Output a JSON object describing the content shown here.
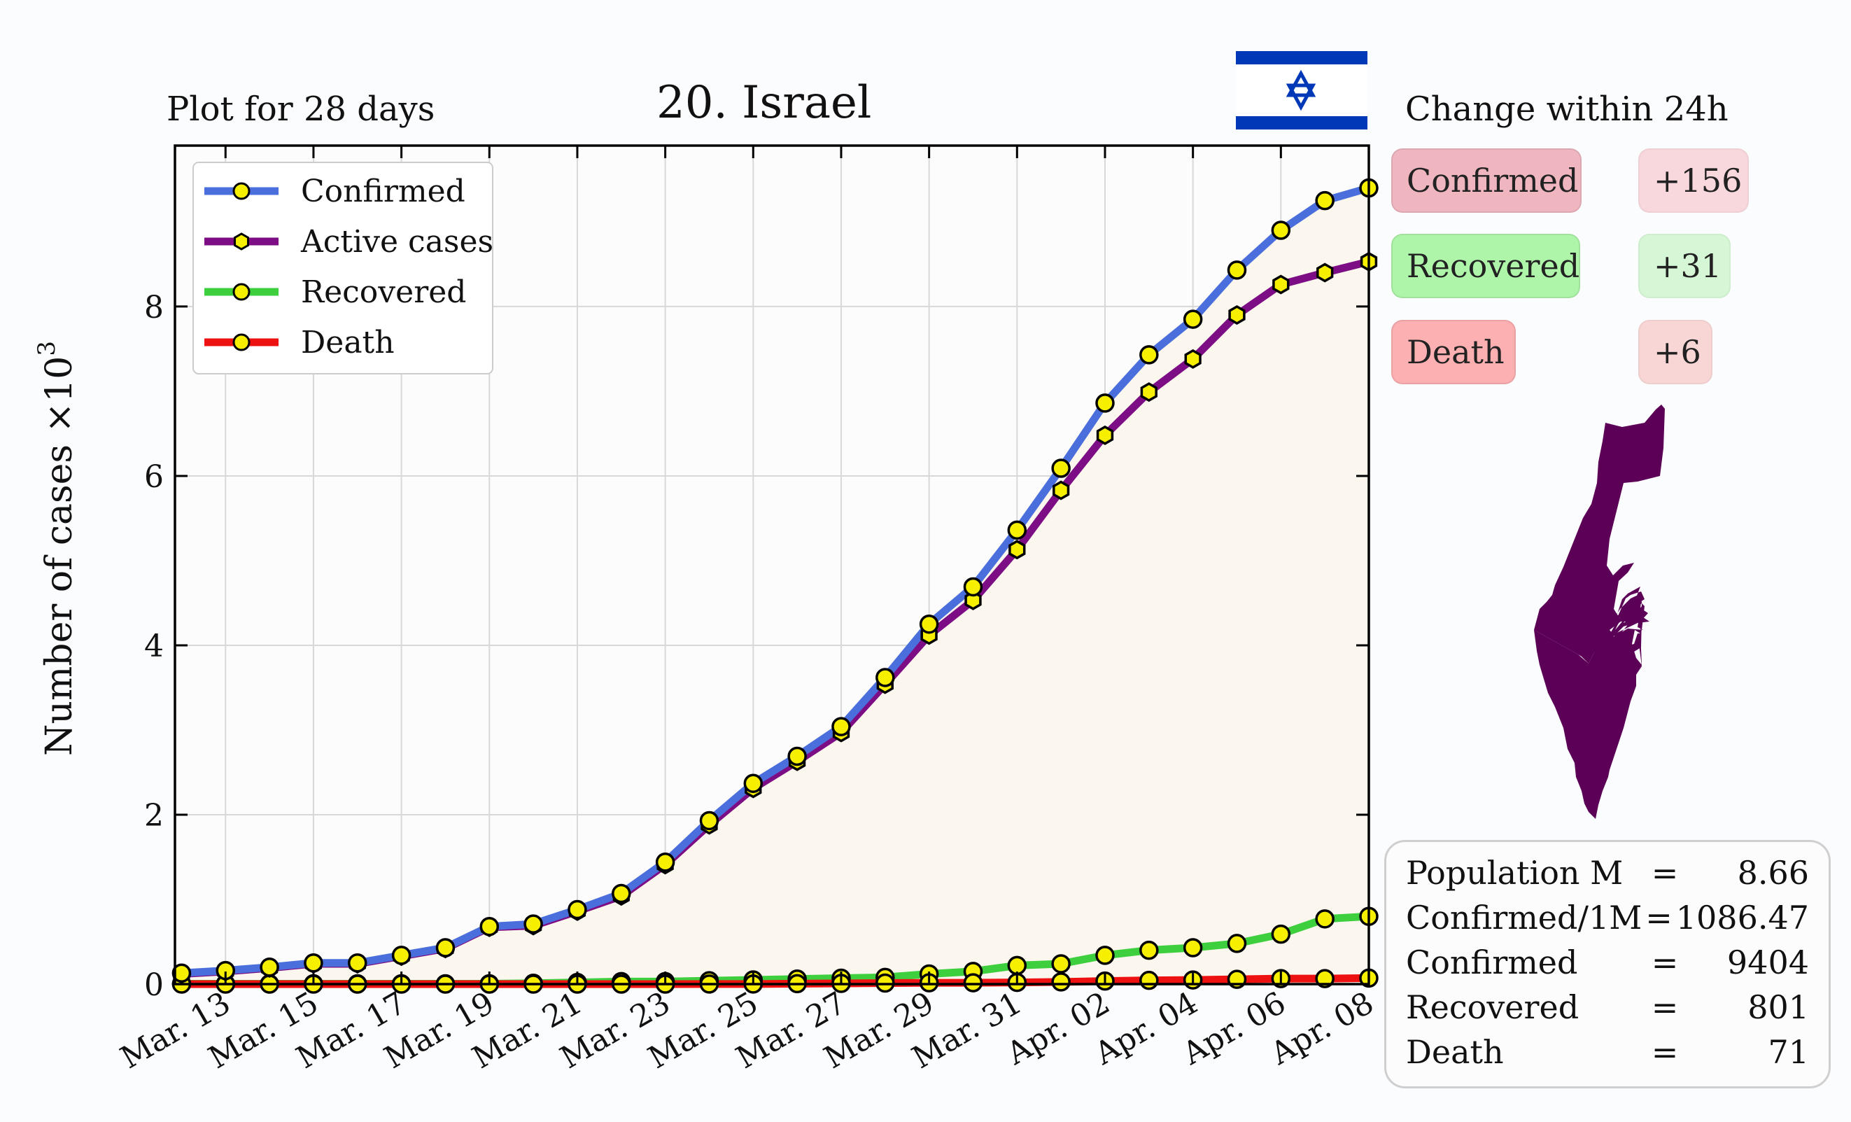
{
  "header": {
    "plot_period": "Plot for 28 days",
    "title": "20. Israel",
    "change_title": "Change within 24h"
  },
  "change": [
    {
      "label": "Confirmed",
      "value": "+156",
      "label_color": "#f0b6c0",
      "value_color": "#f8d8dd"
    },
    {
      "label": "Recovered",
      "value": "+31",
      "label_color": "#aef5aa",
      "value_color": "#d6f7d6"
    },
    {
      "label": "Death",
      "value": "+6",
      "label_color": "#fcb0b2",
      "value_color": "#f8d6d6"
    }
  ],
  "stats": [
    {
      "label": "Population M",
      "eq": "=",
      "value": "8.66"
    },
    {
      "label": "Confirmed/1M",
      "eq": "=",
      "value": "1086.47"
    },
    {
      "label": "Confirmed",
      "eq": "=",
      "value": "9404"
    },
    {
      "label": "Recovered",
      "eq": "=",
      "value": "801"
    },
    {
      "label": "Death",
      "eq": "=",
      "value": "71"
    }
  ],
  "icons": {
    "flag": "israel-flag-icon",
    "map": "israel-map-icon"
  },
  "colors": {
    "flag_blue": "#0038b8",
    "map_fill": "#5c0057",
    "fill_area": "#fbf7ee"
  },
  "chart_data": {
    "type": "line",
    "ylabel": "Number of cases ×10³",
    "ylabel_main": "Number of cases ×10",
    "ylabel_exp": "3",
    "ylim": [
      0,
      9.9
    ],
    "yticks": [
      0,
      2,
      4,
      6,
      8
    ],
    "grid": true,
    "legend_position": "top-left",
    "x": [
      "Mar. 12",
      "Mar. 13",
      "Mar. 14",
      "Mar. 15",
      "Mar. 16",
      "Mar. 17",
      "Mar. 18",
      "Mar. 19",
      "Mar. 20",
      "Mar. 21",
      "Mar. 22",
      "Mar. 23",
      "Mar. 24",
      "Mar. 25",
      "Mar. 26",
      "Mar. 27",
      "Mar. 28",
      "Mar. 29",
      "Mar. 30",
      "Mar. 31",
      "Apr. 01",
      "Apr. 02",
      "Apr. 03",
      "Apr. 04",
      "Apr. 05",
      "Apr. 06",
      "Apr. 07",
      "Apr. 08"
    ],
    "xtick_labels": [
      "Mar. 13",
      "Mar. 15",
      "Mar. 17",
      "Mar. 19",
      "Mar. 21",
      "Mar. 23",
      "Mar. 25",
      "Mar. 27",
      "Mar. 29",
      "Mar. 31",
      "Apr. 02",
      "Apr. 04",
      "Apr. 06",
      "Apr. 08"
    ],
    "series": [
      {
        "name": "Confirmed",
        "color": "#4a6fdc",
        "marker": "circle",
        "values": [
          0.13,
          0.16,
          0.2,
          0.25,
          0.25,
          0.34,
          0.43,
          0.68,
          0.71,
          0.88,
          1.07,
          1.44,
          1.93,
          2.37,
          2.69,
          3.04,
          3.62,
          4.25,
          4.69,
          5.36,
          6.09,
          6.86,
          7.43,
          7.85,
          8.43,
          8.9,
          9.25,
          9.4
        ]
      },
      {
        "name": "Active cases",
        "color": "#7d0d85",
        "marker": "hexagon",
        "values": [
          0.12,
          0.15,
          0.19,
          0.24,
          0.24,
          0.33,
          0.42,
          0.67,
          0.69,
          0.86,
          1.04,
          1.41,
          1.88,
          2.31,
          2.63,
          2.97,
          3.54,
          4.12,
          4.53,
          5.13,
          5.83,
          6.48,
          6.99,
          7.38,
          7.9,
          8.26,
          8.4,
          8.53
        ]
      },
      {
        "name": "Recovered",
        "color": "#3ecf3e",
        "marker": "circle",
        "values": [
          0.004,
          0.004,
          0.004,
          0.004,
          0.004,
          0.004,
          0.004,
          0.004,
          0.01,
          0.02,
          0.03,
          0.03,
          0.04,
          0.05,
          0.06,
          0.07,
          0.08,
          0.12,
          0.15,
          0.22,
          0.24,
          0.34,
          0.4,
          0.43,
          0.48,
          0.59,
          0.77,
          0.8
        ]
      },
      {
        "name": "Death",
        "color": "#ee1111",
        "marker": "circle",
        "values": [
          0,
          0,
          0,
          0,
          0,
          0,
          0,
          0,
          0,
          0,
          0,
          0,
          0.001,
          0.001,
          0.005,
          0.008,
          0.012,
          0.015,
          0.016,
          0.02,
          0.026,
          0.036,
          0.044,
          0.049,
          0.057,
          0.065,
          0.065,
          0.071
        ]
      }
    ]
  }
}
